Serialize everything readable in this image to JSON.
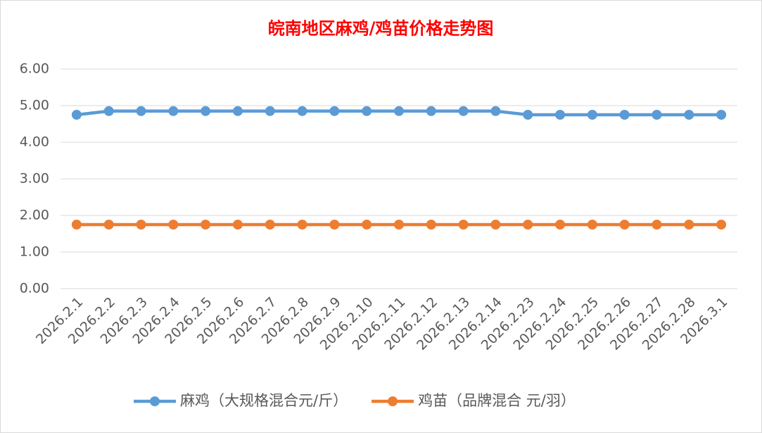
{
  "chart_data": {
    "type": "line",
    "title": "皖南地区麻鸡/鸡苗价格走势图",
    "categories": [
      "2026.2.1",
      "2026.2.2",
      "2026.2.3",
      "2026.2.4",
      "2026.2.5",
      "2026.2.6",
      "2026.2.7",
      "2026.2.8",
      "2026.2.9",
      "2026.2.10",
      "2026.2.11",
      "2026.2.12",
      "2026.2.13",
      "2026.2.14",
      "2026.2.23",
      "2026.2.24",
      "2026.2.25",
      "2026.2.26",
      "2026.2.27",
      "2026.2.28",
      "2026.3.1"
    ],
    "series": [
      {
        "name": "麻鸡（大规格混合元/斤）",
        "color": "#5b9bd5",
        "values": [
          4.75,
          4.85,
          4.85,
          4.85,
          4.85,
          4.85,
          4.85,
          4.85,
          4.85,
          4.85,
          4.85,
          4.85,
          4.85,
          4.85,
          4.75,
          4.75,
          4.75,
          4.75,
          4.75,
          4.75,
          4.75
        ]
      },
      {
        "name": "鸡苗（品牌混合 元/羽）",
        "color": "#ed7d31",
        "values": [
          1.75,
          1.75,
          1.75,
          1.75,
          1.75,
          1.75,
          1.75,
          1.75,
          1.75,
          1.75,
          1.75,
          1.75,
          1.75,
          1.75,
          1.75,
          1.75,
          1.75,
          1.75,
          1.75,
          1.75,
          1.75
        ]
      }
    ],
    "ylim": [
      0,
      6
    ],
    "yticks": [
      {
        "value": 0,
        "label": "0.00"
      },
      {
        "value": 1,
        "label": "1.00"
      },
      {
        "value": 2,
        "label": "2.00"
      },
      {
        "value": 3,
        "label": "3.00"
      },
      {
        "value": 4,
        "label": "4.00"
      },
      {
        "value": 5,
        "label": "5.00"
      },
      {
        "value": 6,
        "label": "6.00"
      }
    ],
    "grid": true,
    "legend": "bottom",
    "title_color": "#ff0000"
  }
}
